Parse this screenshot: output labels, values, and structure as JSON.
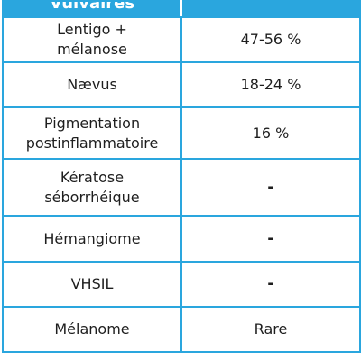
{
  "header": {
    "title": "Vulvaires"
  },
  "table": {
    "rows": [
      [
        "Lentigo + mélanose",
        "47-56 %"
      ],
      [
        "Nævus",
        "18-24 %"
      ],
      [
        "Pigmentation postinflammatoire",
        "16 %"
      ],
      [
        "Kératose séborrhéique",
        "-"
      ],
      [
        "Hémangiome",
        "-"
      ],
      [
        "VHSIL",
        "-"
      ],
      [
        "Mélanome",
        "Rare"
      ]
    ]
  }
}
